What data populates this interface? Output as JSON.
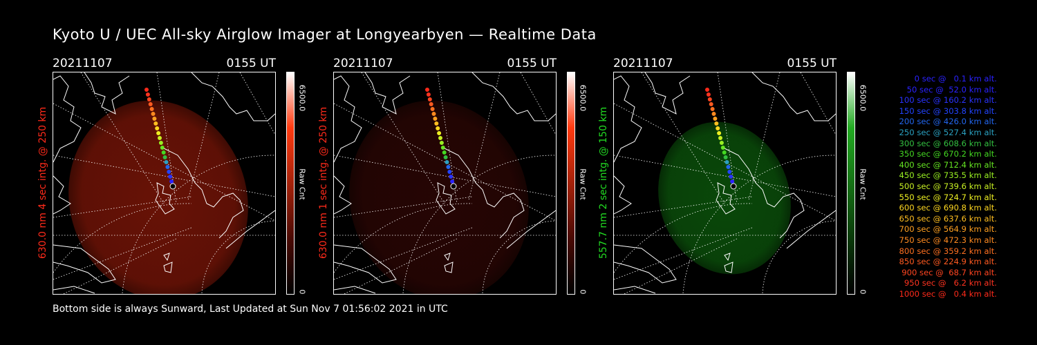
{
  "title": "Kyoto U / UEC All-sky Airglow Imager at Longyearbyen — Realtime Data",
  "footer": "Bottom side is always Sunward, Last Updated at Sun Nov  7 01:56:02 2021 in UTC",
  "panels": [
    {
      "date": "20211107",
      "time": "0155 UT",
      "ylabel": "630.0 nm 4 sec intg. @ 250 km",
      "label_color": "#ff2a1a",
      "cbar_max": "6500.0",
      "cbar_unit": "Raw Cnt",
      "cbar_min": "0",
      "glow": "#8a1808",
      "glow_opacity": 0.75
    },
    {
      "date": "20211107",
      "time": "0155 UT",
      "ylabel": "630.0 nm 1 sec intg. @ 250 km",
      "label_color": "#ff2a1a",
      "cbar_max": "6500.0",
      "cbar_unit": "Raw Cnt",
      "cbar_min": "0",
      "glow": "#2a0604",
      "glow_opacity": 0.9
    },
    {
      "date": "20211107",
      "time": "0155 UT",
      "ylabel": "557.7 nm 2 sec intg. @ 150 km",
      "label_color": "#22dd22",
      "cbar_max": "6500.0",
      "cbar_unit": "Raw Cnt",
      "cbar_min": "0",
      "glow": "#0c5a0c",
      "glow_opacity": 0.8
    }
  ],
  "legend": [
    {
      "text": "0 sec @   0.1 km alt.",
      "color": "#2a22ff"
    },
    {
      "text": "50 sec @  52.0 km alt.",
      "color": "#2a22ff"
    },
    {
      "text": "100 sec @ 160.2 km alt.",
      "color": "#2a33ff"
    },
    {
      "text": "150 sec @ 303.8 km alt.",
      "color": "#2244ff"
    },
    {
      "text": "200 sec @ 426.0 km alt.",
      "color": "#2266ee"
    },
    {
      "text": "250 sec @ 527.4 km alt.",
      "color": "#2aa0c0"
    },
    {
      "text": "300 sec @ 608.6 km alt.",
      "color": "#33c040"
    },
    {
      "text": "350 sec @ 670.2 km alt.",
      "color": "#44d822"
    },
    {
      "text": "400 sec @ 712.4 km alt.",
      "color": "#66e622"
    },
    {
      "text": "450 sec @ 735.5 km alt.",
      "color": "#99f022"
    },
    {
      "text": "500 sec @ 739.6 km alt.",
      "color": "#c8f022"
    },
    {
      "text": "550 sec @ 724.7 km alt.",
      "color": "#eef022"
    },
    {
      "text": "600 sec @ 690.8 km alt.",
      "color": "#ffd820"
    },
    {
      "text": "650 sec @ 637.6 km alt.",
      "color": "#ffbe20"
    },
    {
      "text": "700 sec @ 564.9 km alt.",
      "color": "#ffa020"
    },
    {
      "text": "750 sec @ 472.3 km alt.",
      "color": "#ff8a20"
    },
    {
      "text": "800 sec @ 359.2 km alt.",
      "color": "#ff7020"
    },
    {
      "text": "850 sec @ 224.9 km alt.",
      "color": "#ff5a20"
    },
    {
      "text": "900 sec @  68.7 km alt.",
      "color": "#ff4420"
    },
    {
      "text": "950 sec @   6.2 km alt.",
      "color": "#ff3320"
    },
    {
      "text": "1000 sec @   0.4 km alt.",
      "color": "#ff2a1a"
    }
  ]
}
